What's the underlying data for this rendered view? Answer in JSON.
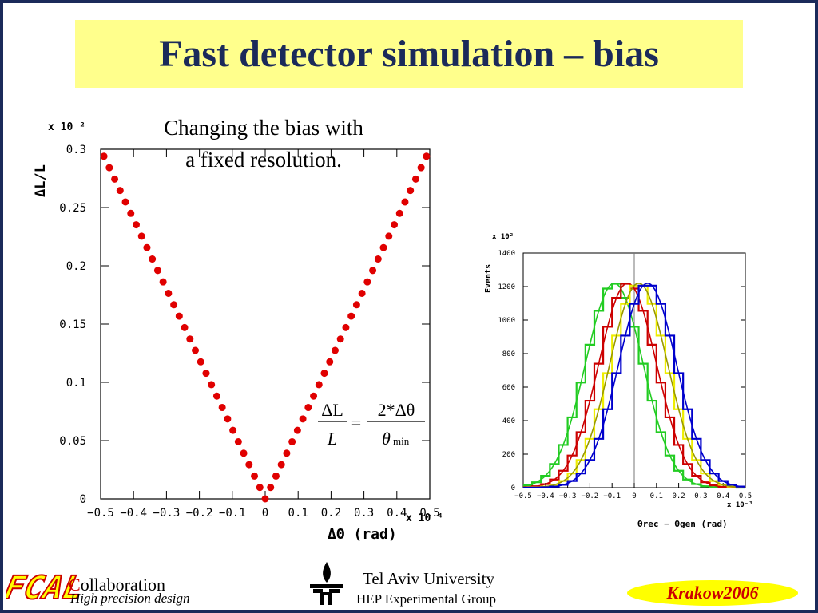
{
  "slide": {
    "title": "Fast detector simulation – bias",
    "caption_line1": "Changing the bias with",
    "caption_line2": "a fixed resolution.",
    "equation": {
      "lhs_num": "ΔL",
      "lhs_den": "L",
      "eq": "=",
      "rhs_num": "2*Δθ",
      "rhs_den": "θ",
      "rhs_den_sub": "min"
    }
  },
  "footer": {
    "logo_text": "FCAL",
    "collab_initial": "C",
    "collab_rest": "ollaboration",
    "collab_sub": "High precision design",
    "univ": "Tel Aviv University",
    "group": "HEP Experimental Group",
    "conf_a": "Krakow",
    "conf_b": "2006"
  },
  "colors": {
    "title_bg": "#ffff8c",
    "title_fg": "#1b2a5a",
    "points": "#e00000",
    "conf_bg": "#ffff00",
    "conf_fg": "#cc0000"
  },
  "chart_data": [
    {
      "type": "scatter",
      "ylabel": "ΔL/L",
      "xlabel": "ΔΘ (rad)",
      "y_multiplier": "x 10⁻²",
      "x_multiplier": "x 10⁻⁴",
      "xlim": [
        -0.5,
        0.5
      ],
      "ylim": [
        0,
        0.3
      ],
      "x_ticks": [
        "−0.5",
        "−0.4",
        "−0.3",
        "−0.2",
        "−0.1",
        "0",
        "0.1",
        "0.2",
        "0.3",
        "0.4",
        "0.5"
      ],
      "y_ticks": [
        "0",
        "0.05",
        "0.1",
        "0.15",
        "0.2",
        "0.25",
        "0.3"
      ],
      "relation": "y = 0.6 * |x|",
      "color": "#e00000"
    },
    {
      "type": "line",
      "ylabel": "Events",
      "xlabel": "Θrec − Θgen (rad)",
      "x_multiplier": "x 10⁻³",
      "y_multiplier": "x 10²",
      "xlim": [
        -0.5,
        0.5
      ],
      "ylim": [
        0,
        1400
      ],
      "x_ticks": [
        "−0.5",
        "−0.4",
        "−0.3",
        "−0.2",
        "−0.1",
        "0",
        "0.1",
        "0.2",
        "0.3",
        "0.4",
        "0.5"
      ],
      "y_ticks": [
        "0",
        "200",
        "400",
        "600",
        "800",
        "1000",
        "1200",
        "1400"
      ],
      "series": [
        {
          "color": "#22cc22",
          "mean": -0.09,
          "sigma": 0.13,
          "peak": 1220
        },
        {
          "color": "#cc0000",
          "mean": -0.03,
          "sigma": 0.13,
          "peak": 1220
        },
        {
          "color": "#eeee00",
          "mean": 0.02,
          "sigma": 0.13,
          "peak": 1220
        },
        {
          "color": "#0000cc",
          "mean": 0.06,
          "sigma": 0.13,
          "peak": 1220
        }
      ]
    }
  ]
}
